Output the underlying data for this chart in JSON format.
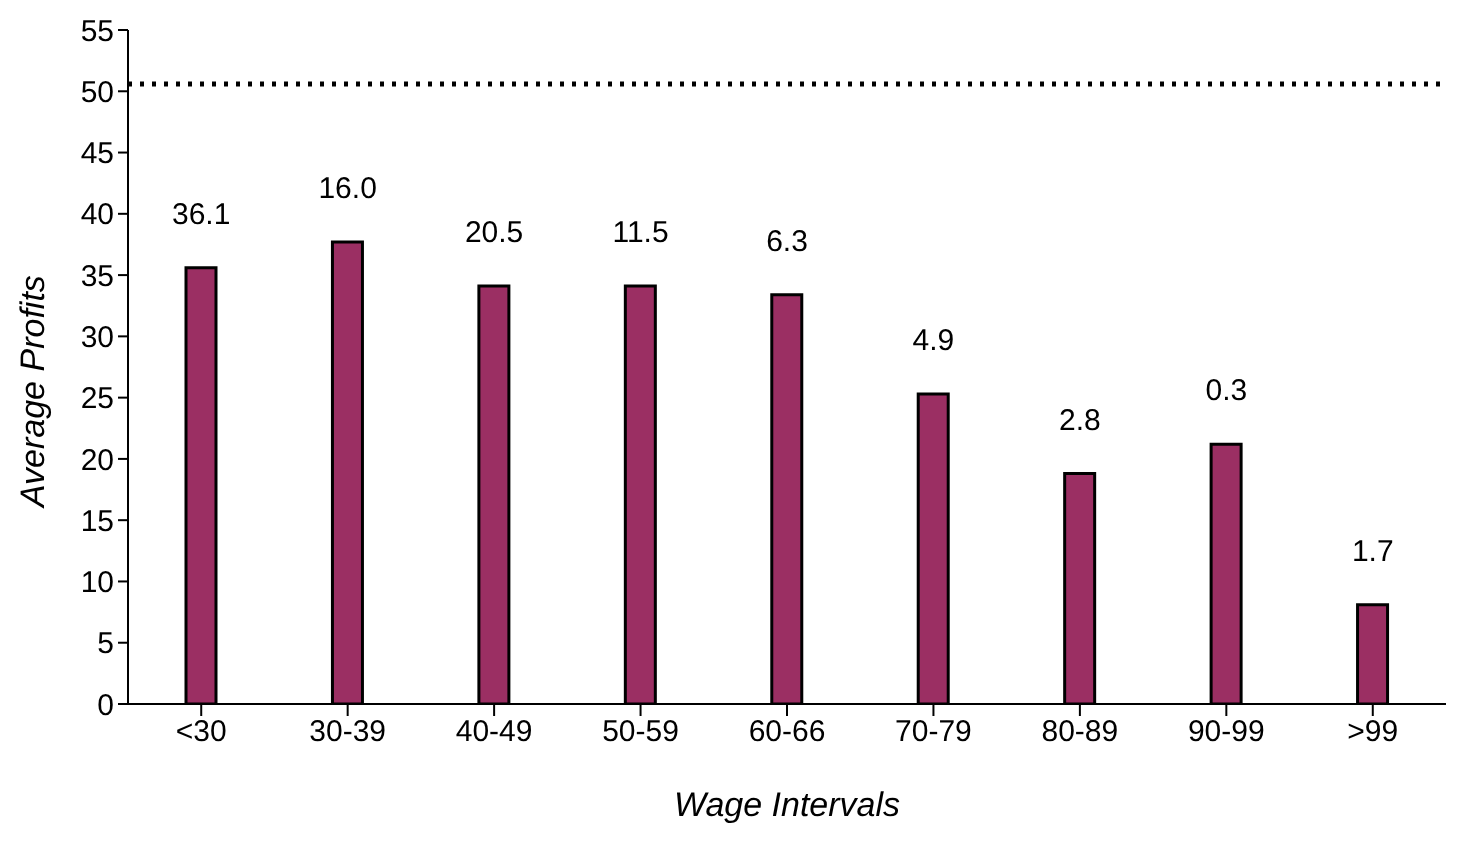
{
  "chart_data": {
    "type": "bar",
    "xlabel": "Wage Intervals",
    "ylabel": "Average Profits",
    "categories": [
      "<30",
      "30-39",
      "40-49",
      "50-59",
      "60-66",
      "70-79",
      "80-89",
      "90-99",
      ">99"
    ],
    "values": [
      35.6,
      37.7,
      34.1,
      34.1,
      33.4,
      25.3,
      18.8,
      21.2,
      8.1
    ],
    "color": "#9b2f63",
    "ylim": [
      0,
      55
    ],
    "yticks": [
      0,
      5,
      10,
      15,
      20,
      25,
      30,
      35,
      40,
      45,
      50,
      55
    ],
    "ref_lines": [
      {
        "axis": "y",
        "value": 50.6,
        "line_style": "dotted",
        "color": "#000000"
      }
    ],
    "annotations": [
      {
        "text": "36.1",
        "x": "<30",
        "y": 35.6
      },
      {
        "text": "16.0",
        "x": "30-39",
        "y": 37.7
      },
      {
        "text": "20.5",
        "x": "40-49",
        "y": 34.1
      },
      {
        "text": "11.5",
        "x": "50-59",
        "y": 34.1
      },
      {
        "text": "6.3",
        "x": "60-66",
        "y": 33.4
      },
      {
        "text": "4.9",
        "x": "70-79",
        "y": 25.3
      },
      {
        "text": "2.8",
        "x": "80-89",
        "y": 18.8
      },
      {
        "text": "0.3",
        "x": "90-99",
        "y": 21.2
      },
      {
        "text": "1.7",
        "x": ">99",
        "y": 8.1
      }
    ]
  }
}
